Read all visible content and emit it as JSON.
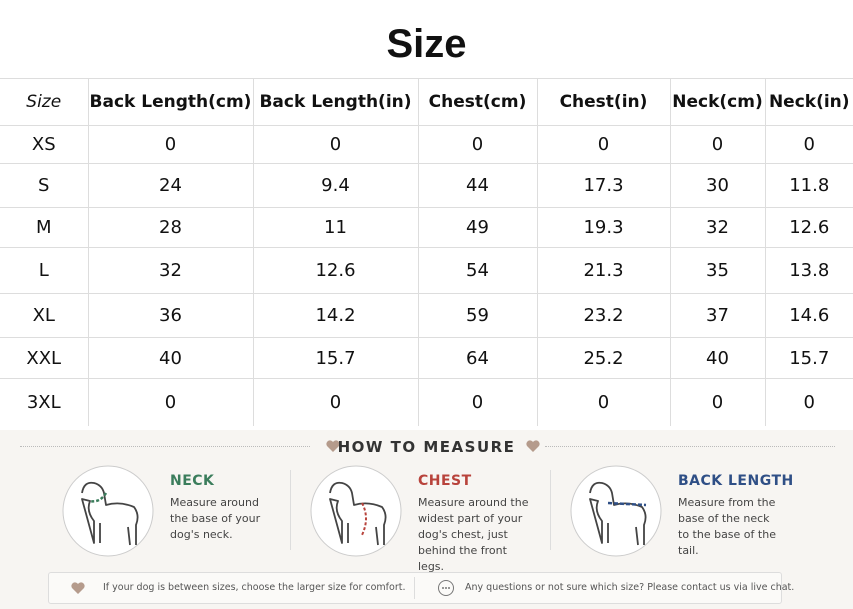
{
  "title": "Size",
  "table": {
    "header": [
      "Size",
      "Back Length(cm)",
      "Back Length(in)",
      "Chest(cm)",
      "Chest(in)",
      "Neck(cm)",
      "Neck(in)"
    ],
    "rows": [
      [
        "XS",
        "0",
        "0",
        "0",
        "0",
        "0",
        "0"
      ],
      [
        "S",
        "24",
        "9.4",
        "44",
        "17.3",
        "30",
        "11.8"
      ],
      [
        "M",
        "28",
        "11",
        "49",
        "19.3",
        "32",
        "12.6"
      ],
      [
        "L",
        "32",
        "12.6",
        "54",
        "21.3",
        "35",
        "13.8"
      ],
      [
        "XL",
        "36",
        "14.2",
        "59",
        "23.2",
        "37",
        "14.6"
      ],
      [
        "XXL",
        "40",
        "15.7",
        "64",
        "25.2",
        "40",
        "15.7"
      ],
      [
        "3XL",
        "0",
        "0",
        "0",
        "0",
        "0",
        "0"
      ]
    ]
  },
  "measure": {
    "heading": "HOW TO MEASURE",
    "items": [
      {
        "title": "NECK",
        "text": "Measure around the base of your dog's neck."
      },
      {
        "title": "CHEST",
        "text": "Measure around the widest part of your dog's chest, just behind the front legs."
      },
      {
        "title": "BACK LENGTH",
        "text": "Measure from the base of the neck to the base of the tail."
      }
    ],
    "notes": [
      "If your dog is between sizes, choose the larger size for comfort.",
      "Any questions or not sure which size? Please contact us via live chat."
    ]
  }
}
